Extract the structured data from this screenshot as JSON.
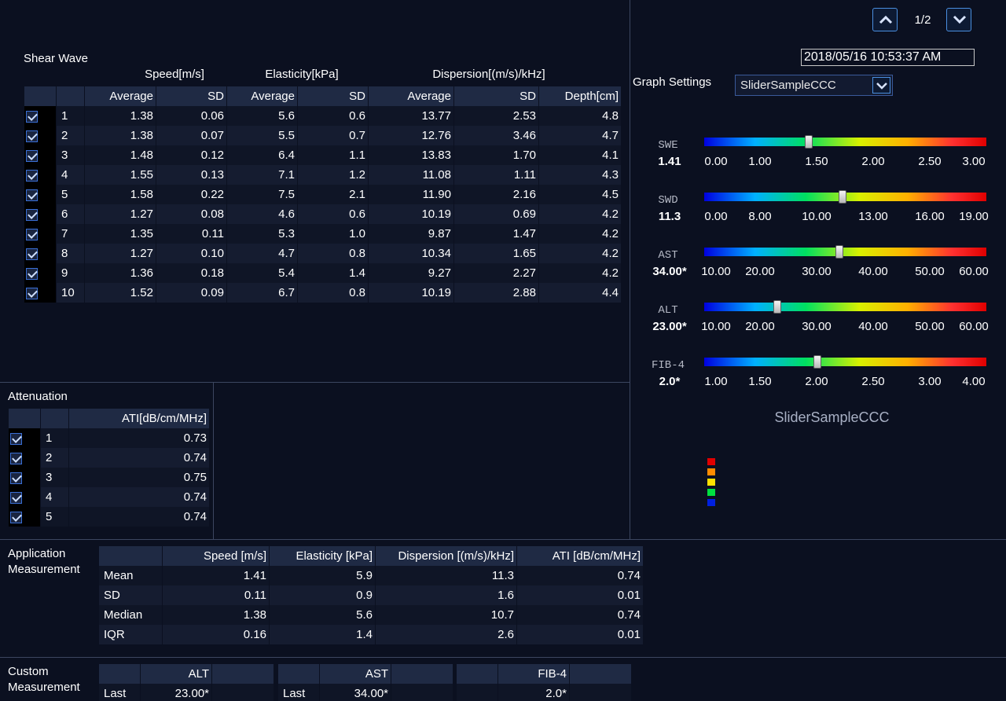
{
  "nav": {
    "page_indicator": "1/2"
  },
  "datetime": "2018/05/16  10:53:37 AM",
  "shear_wave": {
    "title": "Shear Wave",
    "groups": {
      "speed": "Speed[m/s]",
      "elasticity": "Elasticity[kPa]",
      "dispersion": "Dispersion[(m/s)/kHz]"
    },
    "columns": [
      "Average",
      "SD",
      "Average",
      "SD",
      "Average",
      "SD",
      "Depth[cm]"
    ],
    "rows": [
      {
        "idx": "1",
        "speed_avg": "1.38",
        "speed_sd": "0.06",
        "el_avg": "5.6",
        "el_sd": "0.6",
        "disp_avg": "13.77",
        "disp_sd": "2.53",
        "depth": "4.8"
      },
      {
        "idx": "2",
        "speed_avg": "1.38",
        "speed_sd": "0.07",
        "el_avg": "5.5",
        "el_sd": "0.7",
        "disp_avg": "12.76",
        "disp_sd": "3.46",
        "depth": "4.7"
      },
      {
        "idx": "3",
        "speed_avg": "1.48",
        "speed_sd": "0.12",
        "el_avg": "6.4",
        "el_sd": "1.1",
        "disp_avg": "13.83",
        "disp_sd": "1.70",
        "depth": "4.1"
      },
      {
        "idx": "4",
        "speed_avg": "1.55",
        "speed_sd": "0.13",
        "el_avg": "7.1",
        "el_sd": "1.2",
        "disp_avg": "11.08",
        "disp_sd": "1.11",
        "depth": "4.3"
      },
      {
        "idx": "5",
        "speed_avg": "1.58",
        "speed_sd": "0.22",
        "el_avg": "7.5",
        "el_sd": "2.1",
        "disp_avg": "11.90",
        "disp_sd": "2.16",
        "depth": "4.5"
      },
      {
        "idx": "6",
        "speed_avg": "1.27",
        "speed_sd": "0.08",
        "el_avg": "4.6",
        "el_sd": "0.6",
        "disp_avg": "10.19",
        "disp_sd": "0.69",
        "depth": "4.2"
      },
      {
        "idx": "7",
        "speed_avg": "1.35",
        "speed_sd": "0.11",
        "el_avg": "5.3",
        "el_sd": "1.0",
        "disp_avg": "9.87",
        "disp_sd": "1.47",
        "depth": "4.2"
      },
      {
        "idx": "8",
        "speed_avg": "1.27",
        "speed_sd": "0.10",
        "el_avg": "4.7",
        "el_sd": "0.8",
        "disp_avg": "10.34",
        "disp_sd": "1.65",
        "depth": "4.2"
      },
      {
        "idx": "9",
        "speed_avg": "1.36",
        "speed_sd": "0.18",
        "el_avg": "5.4",
        "el_sd": "1.4",
        "disp_avg": "9.27",
        "disp_sd": "2.27",
        "depth": "4.2"
      },
      {
        "idx": "10",
        "speed_avg": "1.52",
        "speed_sd": "0.09",
        "el_avg": "6.7",
        "el_sd": "0.8",
        "disp_avg": "10.19",
        "disp_sd": "2.88",
        "depth": "4.4"
      }
    ]
  },
  "attenuation": {
    "title": "Attenuation",
    "column": "ATI[dB/cm/MHz]",
    "rows": [
      {
        "idx": "1",
        "ati": "0.73"
      },
      {
        "idx": "2",
        "ati": "0.74"
      },
      {
        "idx": "3",
        "ati": "0.75"
      },
      {
        "idx": "4",
        "ati": "0.74"
      },
      {
        "idx": "5",
        "ati": "0.74"
      }
    ]
  },
  "graph_settings": {
    "label": "Graph Settings",
    "selected": "SliderSampleCCC",
    "caption": "SliderSampleCCC",
    "legend_colors": [
      "#e00000",
      "#ff8c00",
      "#ffe000",
      "#00e040",
      "#0020e0"
    ],
    "sliders": [
      {
        "name": "SWE",
        "value": "1.41",
        "level": 0.37,
        "ticks": [
          "0.00",
          "1.00",
          "1.50",
          "2.00",
          "2.50",
          "3.00"
        ]
      },
      {
        "name": "SWD",
        "value": "11.3",
        "level": 0.49,
        "ticks": [
          "0.00",
          "8.00",
          "10.00",
          "13.00",
          "16.00",
          "19.00"
        ]
      },
      {
        "name": "AST",
        "value": "34.00*",
        "level": 0.48,
        "ticks": [
          "10.00",
          "20.00",
          "30.00",
          "40.00",
          "50.00",
          "60.00"
        ]
      },
      {
        "name": "ALT",
        "value": "23.00*",
        "level": 0.26,
        "ticks": [
          "10.00",
          "20.00",
          "30.00",
          "40.00",
          "50.00",
          "60.00"
        ]
      },
      {
        "name": "FIB-4",
        "value": "2.0*",
        "level": 0.4,
        "ticks": [
          "1.00",
          "1.50",
          "2.00",
          "2.50",
          "3.00",
          "4.00"
        ]
      }
    ]
  },
  "application": {
    "title_line1": "Application",
    "title_line2": "Measurement",
    "columns": [
      "Speed [m/s]",
      "Elasticity [kPa]",
      "Dispersion [(m/s)/kHz]",
      "ATI [dB/cm/MHz]"
    ],
    "rows": [
      {
        "stat": "Mean",
        "speed": "1.41",
        "elasticity": "5.9",
        "dispersion": "11.3",
        "ati": "0.74"
      },
      {
        "stat": "SD",
        "speed": "0.11",
        "elasticity": "0.9",
        "dispersion": "1.6",
        "ati": "0.01"
      },
      {
        "stat": "Median",
        "speed": "1.38",
        "elasticity": "5.6",
        "dispersion": "10.7",
        "ati": "0.74"
      },
      {
        "stat": "IQR",
        "speed": "0.16",
        "elasticity": "1.4",
        "dispersion": "2.6",
        "ati": "0.01"
      }
    ]
  },
  "custom": {
    "title_line1": "Custom",
    "title_line2": "Measurement",
    "tables": [
      {
        "header": "ALT",
        "row_label": "Last",
        "value": "23.00*"
      },
      {
        "header": "AST",
        "row_label": "Last",
        "value": "34.00*"
      },
      {
        "header": "FIB-4",
        "row_label": "",
        "value": "2.0*"
      }
    ]
  }
}
